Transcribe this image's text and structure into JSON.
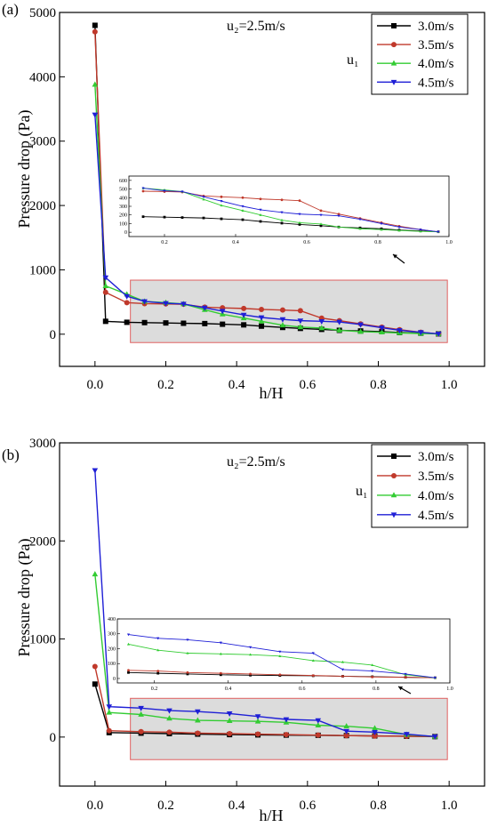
{
  "chart_data": [
    {
      "type": "line",
      "panel_label": "(a)",
      "annotation": "u₂=2.5m/s",
      "legend_title": "u₁",
      "xlabel": "h/H",
      "ylabel": "Pressure drop (Pa)",
      "xlim": [
        -0.1,
        1.1
      ],
      "ylim": [
        -500,
        5000
      ],
      "xticks": [
        "0.0",
        "0.2",
        "0.4",
        "0.6",
        "0.8",
        "1.0"
      ],
      "yticks": [
        "0",
        "1000",
        "2000",
        "3000",
        "4000",
        "5000"
      ],
      "legend_placement": "top-right",
      "series": [
        {
          "name": "3.0m/s",
          "color": "#000000",
          "marker": "square",
          "x": [
            0,
            0.03,
            0.09,
            0.14,
            0.2,
            0.25,
            0.31,
            0.36,
            0.42,
            0.47,
            0.53,
            0.58,
            0.64,
            0.69,
            0.75,
            0.81,
            0.86,
            0.92,
            0.97
          ],
          "y": [
            4800,
            200,
            185,
            180,
            175,
            170,
            165,
            155,
            145,
            125,
            105,
            90,
            75,
            60,
            50,
            40,
            25,
            15,
            5
          ]
        },
        {
          "name": "3.5m/s",
          "color": "#c0392b",
          "marker": "circle",
          "x": [
            0,
            0.03,
            0.09,
            0.14,
            0.2,
            0.25,
            0.31,
            0.36,
            0.42,
            0.47,
            0.53,
            0.58,
            0.64,
            0.69,
            0.75,
            0.81,
            0.86,
            0.92,
            0.97
          ],
          "y": [
            4700,
            650,
            490,
            475,
            470,
            465,
            420,
            410,
            400,
            385,
            375,
            365,
            250,
            210,
            160,
            110,
            70,
            30,
            5
          ]
        },
        {
          "name": "4.0m/s",
          "color": "#33cc33",
          "marker": "triangle-up",
          "x": [
            0,
            0.03,
            0.09,
            0.14,
            0.2,
            0.25,
            0.31,
            0.36,
            0.42,
            0.47,
            0.53,
            0.58,
            0.64,
            0.69,
            0.75,
            0.81,
            0.86,
            0.92,
            0.97
          ],
          "y": [
            3880,
            750,
            620,
            510,
            490,
            470,
            380,
            310,
            250,
            200,
            140,
            110,
            95,
            60,
            40,
            30,
            20,
            10,
            5
          ]
        },
        {
          "name": "4.5m/s",
          "color": "#1f1fd6",
          "marker": "triangle-down",
          "x": [
            0,
            0.03,
            0.09,
            0.14,
            0.2,
            0.25,
            0.31,
            0.36,
            0.42,
            0.47,
            0.53,
            0.58,
            0.64,
            0.69,
            0.75,
            0.81,
            0.86,
            0.92,
            0.97
          ],
          "y": [
            3410,
            880,
            590,
            510,
            480,
            470,
            410,
            360,
            300,
            260,
            230,
            210,
            200,
            190,
            150,
            100,
            60,
            30,
            5
          ]
        }
      ],
      "inset": {
        "xlim": [
          0.1,
          1.0
        ],
        "ylim": [
          -50,
          650
        ],
        "xticks": [
          "0.2",
          "0.4",
          "0.6",
          "0.8",
          "1.0"
        ],
        "yticks": [
          "0",
          "100",
          "200",
          "300",
          "400",
          "500",
          "600"
        ]
      }
    },
    {
      "type": "line",
      "panel_label": "(b)",
      "annotation": "u₂=2.5m/s",
      "legend_title": "u₁",
      "xlabel": "h/H",
      "ylabel": "Pressure drop (Pa)",
      "xlim": [
        -0.1,
        1.1
      ],
      "ylim": [
        -500,
        3000
      ],
      "xticks": [
        "0.0",
        "0.2",
        "0.4",
        "0.6",
        "0.8",
        "1.0"
      ],
      "yticks": [
        "0",
        "1000",
        "2000",
        "3000"
      ],
      "legend_placement": "top-right",
      "series": [
        {
          "name": "3.0m/s",
          "color": "#000000",
          "marker": "square",
          "x": [
            0,
            0.04,
            0.13,
            0.21,
            0.29,
            0.38,
            0.46,
            0.54,
            0.63,
            0.71,
            0.79,
            0.88,
            0.96
          ],
          "y": [
            540,
            45,
            40,
            35,
            30,
            25,
            22,
            20,
            18,
            15,
            12,
            8,
            5
          ]
        },
        {
          "name": "3.5m/s",
          "color": "#c0392b",
          "marker": "circle",
          "x": [
            0,
            0.04,
            0.13,
            0.21,
            0.29,
            0.38,
            0.46,
            0.54,
            0.63,
            0.71,
            0.79,
            0.88,
            0.96
          ],
          "y": [
            720,
            65,
            55,
            50,
            40,
            35,
            30,
            25,
            20,
            15,
            10,
            8,
            5
          ]
        },
        {
          "name": "4.0m/s",
          "color": "#33cc33",
          "marker": "triangle-up",
          "x": [
            0,
            0.04,
            0.13,
            0.21,
            0.29,
            0.38,
            0.46,
            0.54,
            0.63,
            0.71,
            0.79,
            0.88,
            0.96
          ],
          "y": [
            1660,
            250,
            230,
            190,
            170,
            165,
            160,
            150,
            120,
            110,
            90,
            25,
            5
          ]
        },
        {
          "name": "4.5m/s",
          "color": "#1f1fd6",
          "marker": "triangle-down",
          "x": [
            0,
            0.04,
            0.13,
            0.21,
            0.29,
            0.38,
            0.46,
            0.54,
            0.63,
            0.71,
            0.79,
            0.88,
            0.96
          ],
          "y": [
            2720,
            310,
            295,
            270,
            260,
            240,
            210,
            180,
            170,
            60,
            50,
            30,
            5
          ]
        }
      ],
      "inset": {
        "xlim": [
          0.1,
          1.0
        ],
        "ylim": [
          -30,
          400
        ],
        "xticks": [
          "0.2",
          "0.4",
          "0.6",
          "0.8",
          "1.0"
        ],
        "yticks": [
          "0",
          "100",
          "200",
          "300",
          "400"
        ]
      }
    }
  ]
}
